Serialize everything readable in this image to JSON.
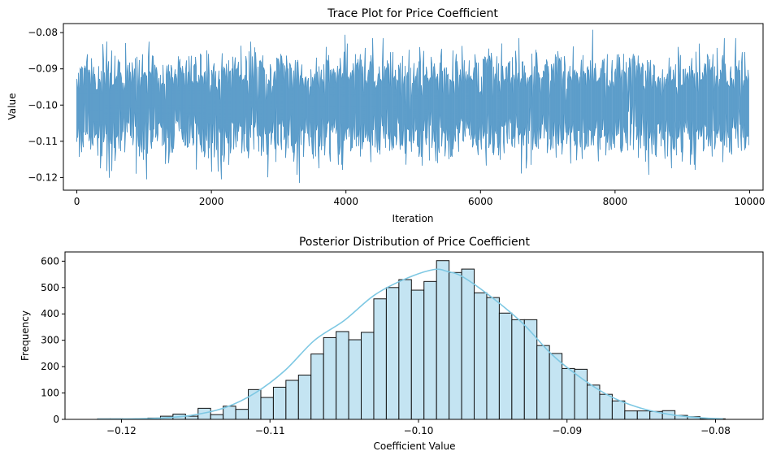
{
  "chart_data": [
    {
      "type": "line",
      "title": "Trace Plot for Price Coefficient",
      "xlabel": "Iteration",
      "ylabel": "Value",
      "xlim": [
        -200,
        10200
      ],
      "ylim": [
        -0.1235,
        -0.0775
      ],
      "xticks": [
        0,
        2000,
        4000,
        6000,
        8000,
        10000
      ],
      "xtick_labels": [
        "0",
        "2000",
        "4000",
        "6000",
        "8000",
        "10000"
      ],
      "yticks": [
        -0.12,
        -0.11,
        -0.1,
        -0.09,
        -0.08
      ],
      "ytick_labels": [
        "−0.12",
        "−0.11",
        "−0.10",
        "−0.09",
        "−0.08"
      ],
      "grid": false,
      "n_points": 10000,
      "series_mean": -0.1,
      "series_sd": 0.0057,
      "extremes": [
        {
          "x": 3320,
          "y": -0.1215
        },
        {
          "x": 7680,
          "y": -0.0792
        },
        {
          "x": 3990,
          "y": -0.0806
        },
        {
          "x": 450,
          "y": -0.1182
        },
        {
          "x": 1780,
          "y": -0.1178
        }
      ],
      "color": "#4c93c5"
    },
    {
      "type": "bar",
      "title": "Posterior Distribution of Price Coefficient",
      "xlabel": "Coefficient Value",
      "ylabel": "Frequency",
      "xlim": [
        -0.1238,
        -0.0768
      ],
      "ylim": [
        0,
        635
      ],
      "xticks": [
        -0.12,
        -0.11,
        -0.1,
        -0.09,
        -0.08
      ],
      "xtick_labels": [
        "−0.12",
        "−0.11",
        "−0.10",
        "−0.09",
        "−0.08"
      ],
      "yticks": [
        0,
        100,
        200,
        300,
        400,
        500,
        600
      ],
      "ytick_labels": [
        "0",
        "100",
        "200",
        "300",
        "400",
        "500",
        "600"
      ],
      "grid": false,
      "bin_start": -0.1216,
      "bin_width": 0.000845,
      "values": [
        2,
        2,
        1,
        2,
        5,
        12,
        20,
        12,
        42,
        18,
        50,
        38,
        113,
        83,
        122,
        148,
        168,
        248,
        310,
        333,
        302,
        330,
        457,
        500,
        530,
        490,
        523,
        602,
        557,
        570,
        480,
        462,
        403,
        378,
        378,
        280,
        250,
        193,
        190,
        130,
        95,
        70,
        32,
        32,
        30,
        33,
        15,
        10,
        2,
        2
      ],
      "kde": [
        [
          -0.1216,
          1
        ],
        [
          -0.119,
          2
        ],
        [
          -0.117,
          6
        ],
        [
          -0.115,
          18
        ],
        [
          -0.113,
          45
        ],
        [
          -0.111,
          100
        ],
        [
          -0.109,
          185
        ],
        [
          -0.107,
          300
        ],
        [
          -0.105,
          375
        ],
        [
          -0.103,
          470
        ],
        [
          -0.101,
          530
        ],
        [
          -0.099,
          568
        ],
        [
          -0.098,
          560
        ],
        [
          -0.097,
          540
        ],
        [
          -0.095,
          460
        ],
        [
          -0.093,
          365
        ],
        [
          -0.091,
          245
        ],
        [
          -0.089,
          155
        ],
        [
          -0.087,
          85
        ],
        [
          -0.085,
          42
        ],
        [
          -0.083,
          18
        ],
        [
          -0.081,
          6
        ],
        [
          -0.0795,
          2
        ]
      ],
      "bar_color": "#c4e4f2",
      "edge_color": "#111111",
      "kde_color": "#7ec8e3"
    }
  ]
}
